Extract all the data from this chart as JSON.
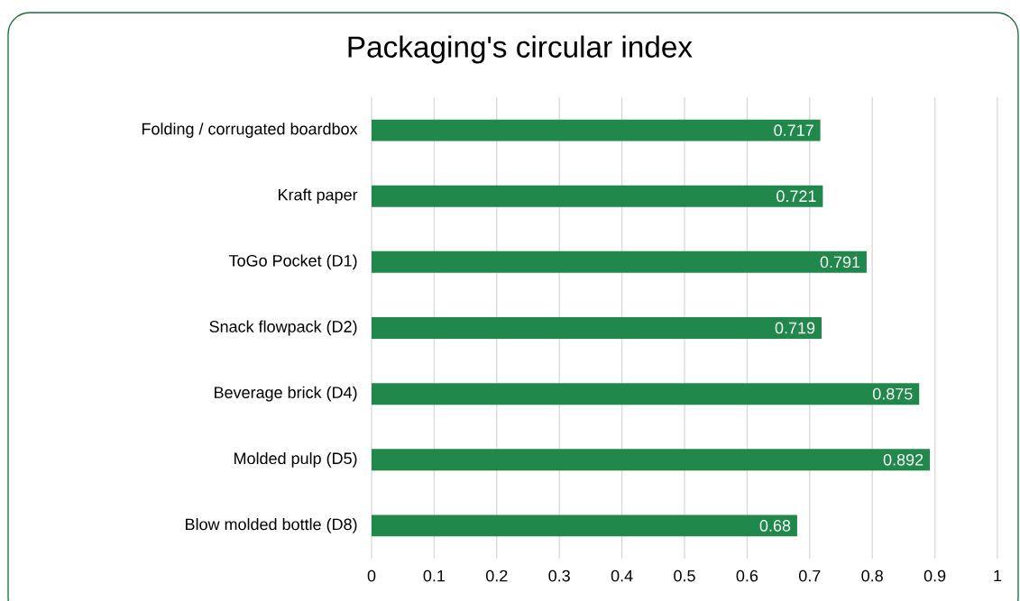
{
  "chart_data": {
    "type": "bar",
    "orientation": "horizontal",
    "title": "Packaging's circular index",
    "categories": [
      "Folding  / corrugated boardbox",
      "Kraft paper",
      "ToGo Pocket (D1)",
      "Snack flowpack (D2)",
      "Beverage brick (D4)",
      "Molded pulp (D5)",
      "Blow molded bottle (D8)"
    ],
    "values": [
      0.717,
      0.721,
      0.791,
      0.719,
      0.875,
      0.892,
      0.68
    ],
    "color": "#1f884a",
    "data_labels": true,
    "grid": "x",
    "xlim": [
      0,
      1
    ],
    "xticks": [
      0,
      0.1,
      0.2,
      0.3,
      0.4,
      0.5,
      0.6,
      0.7,
      0.8,
      0.9,
      1
    ]
  }
}
